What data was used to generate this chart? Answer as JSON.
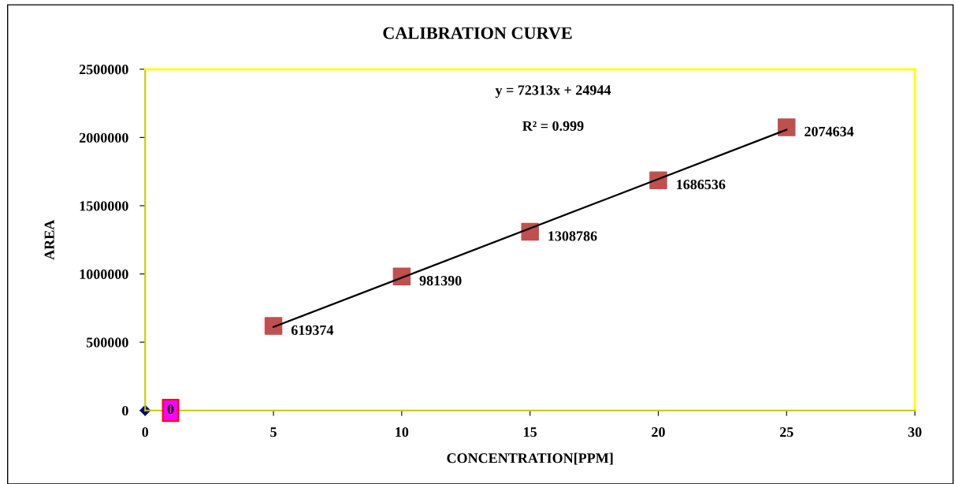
{
  "chart_data": {
    "type": "scatter",
    "title": "CALIBRATION CURVE",
    "xlabel": "CONCENTRATION[PPM]",
    "ylabel": "AREA",
    "xlim": [
      0,
      30
    ],
    "xticks": [
      0,
      5,
      10,
      15,
      20,
      25,
      30
    ],
    "ylim": [
      0,
      2500000
    ],
    "yticks": [
      0,
      500000,
      1000000,
      1500000,
      2000000,
      2500000
    ],
    "series": [
      {
        "x": [
          0
        ],
        "values": [
          0
        ],
        "color": "#000080",
        "marker": "diamond",
        "data_labels": true
      },
      {
        "x": [
          5,
          10,
          15,
          20,
          25
        ],
        "values": [
          619374,
          981390,
          1308786,
          1686536,
          2074634
        ],
        "color": "#c0504d",
        "marker": "square",
        "data_labels": true
      },
      {
        "type": "line",
        "x": [
          5,
          25
        ],
        "values": [
          611000,
          2057000
        ],
        "color": "#000000",
        "marker": "none",
        "line_style": "solid"
      }
    ],
    "annotations": [
      "y = 72313x + 24944",
      "R² = 0.999"
    ],
    "grid": false,
    "legend": false
  }
}
